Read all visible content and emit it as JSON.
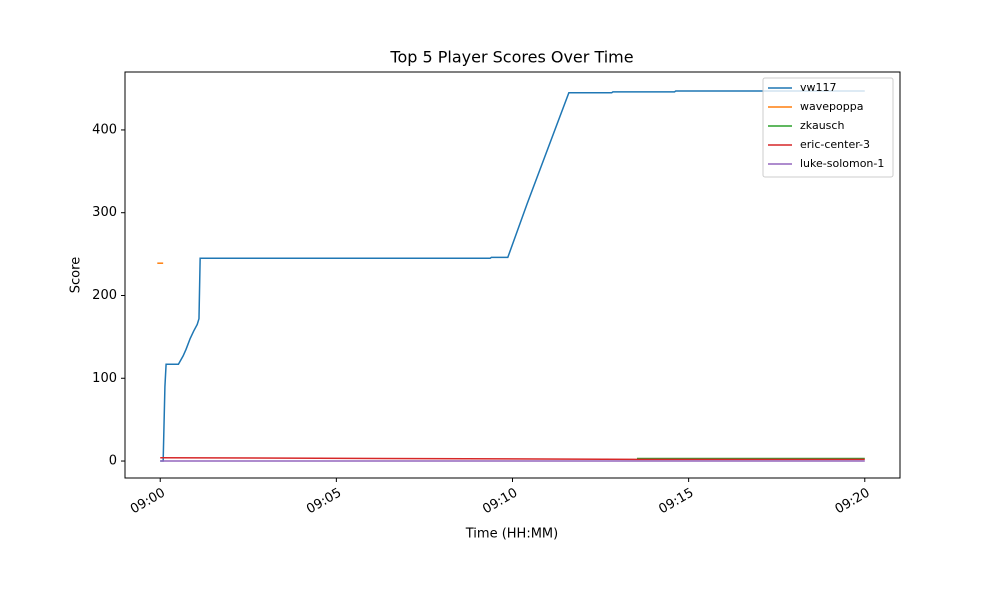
{
  "chart_data": {
    "type": "line",
    "title": "Top 5 Player Scores Over Time",
    "x_label": "Time (HH:MM)",
    "y_label": "Score",
    "xlim": [
      "08:59:00",
      "09:21:00"
    ],
    "xticks": [
      "09:00",
      "09:05",
      "09:10",
      "09:15",
      "09:20"
    ],
    "ylim": [
      -20.5,
      470
    ],
    "yticks": [
      0,
      100,
      200,
      300,
      400
    ],
    "legend": "upper right",
    "series": [
      {
        "name": "vw117",
        "color": "#1f77b4",
        "x": [
          "09:00:00",
          "09:00:05",
          "09:00:08",
          "09:00:10",
          "09:00:31",
          "09:00:39",
          "09:00:44",
          "09:00:51",
          "09:00:57",
          "09:01:03",
          "09:01:06",
          "09:01:08",
          "09:09:22",
          "09:09:24",
          "09:09:52",
          "09:10:25",
          "09:11:36",
          "09:12:49",
          "09:12:51",
          "09:14:36",
          "09:14:38",
          "09:20:00"
        ],
        "values": [
          0,
          0,
          90,
          117,
          117,
          127,
          135,
          148,
          157,
          165,
          172,
          245,
          245,
          246,
          246,
          311,
          445,
          445,
          446,
          446,
          447,
          447
        ]
      },
      {
        "name": "wavepoppa",
        "color": "#ff7f0e",
        "x": [
          "08:59:55",
          "09:00:05"
        ],
        "values": [
          239,
          239
        ]
      },
      {
        "name": "zkausch",
        "color": "#2ca02c",
        "x": [
          "09:13:32",
          "09:20:00"
        ],
        "values": [
          3,
          3
        ]
      },
      {
        "name": "eric-center-3",
        "color": "#d62728",
        "x": [
          "09:00:00",
          "09:13:30",
          "09:20:00"
        ],
        "values": [
          4,
          2,
          2
        ]
      },
      {
        "name": "luke-solomon-1",
        "color": "#9467bd",
        "x": [
          "09:00:00",
          "09:20:00"
        ],
        "values": [
          0,
          0
        ]
      }
    ]
  }
}
